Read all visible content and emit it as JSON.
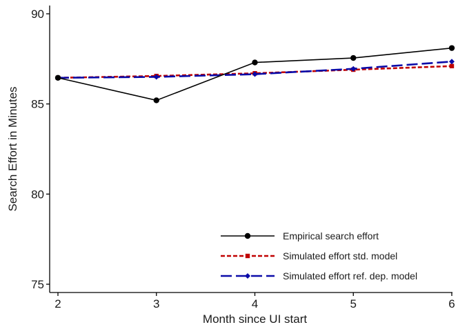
{
  "chart_data": {
    "type": "line",
    "title": "",
    "xlabel": "Month since UI start",
    "ylabel": "Search Effort in Minutes",
    "x": [
      2,
      3,
      4,
      5,
      6
    ],
    "xlim": [
      2,
      6
    ],
    "ylim": [
      75,
      90
    ],
    "xticks": [
      "2",
      "3",
      "4",
      "5",
      "6"
    ],
    "yticks": [
      "75",
      "80",
      "85",
      "90"
    ],
    "grid": false,
    "legend_position": "bottom-right",
    "series": [
      {
        "name": "Empirical search effort",
        "values": [
          86.45,
          85.2,
          87.3,
          87.55,
          88.1
        ],
        "color": "#000000",
        "line_style": "solid",
        "marker": "circle"
      },
      {
        "name": "Simulated effort std. model",
        "values": [
          86.45,
          86.55,
          86.7,
          86.9,
          87.1
        ],
        "color": "#c00000",
        "line_style": "dotted",
        "marker": "square"
      },
      {
        "name": "Simulated effort ref. dep. model",
        "values": [
          86.45,
          86.5,
          86.65,
          86.95,
          87.35
        ],
        "color": "#0a0aa8",
        "line_style": "dashed",
        "marker": "diamond"
      }
    ]
  }
}
